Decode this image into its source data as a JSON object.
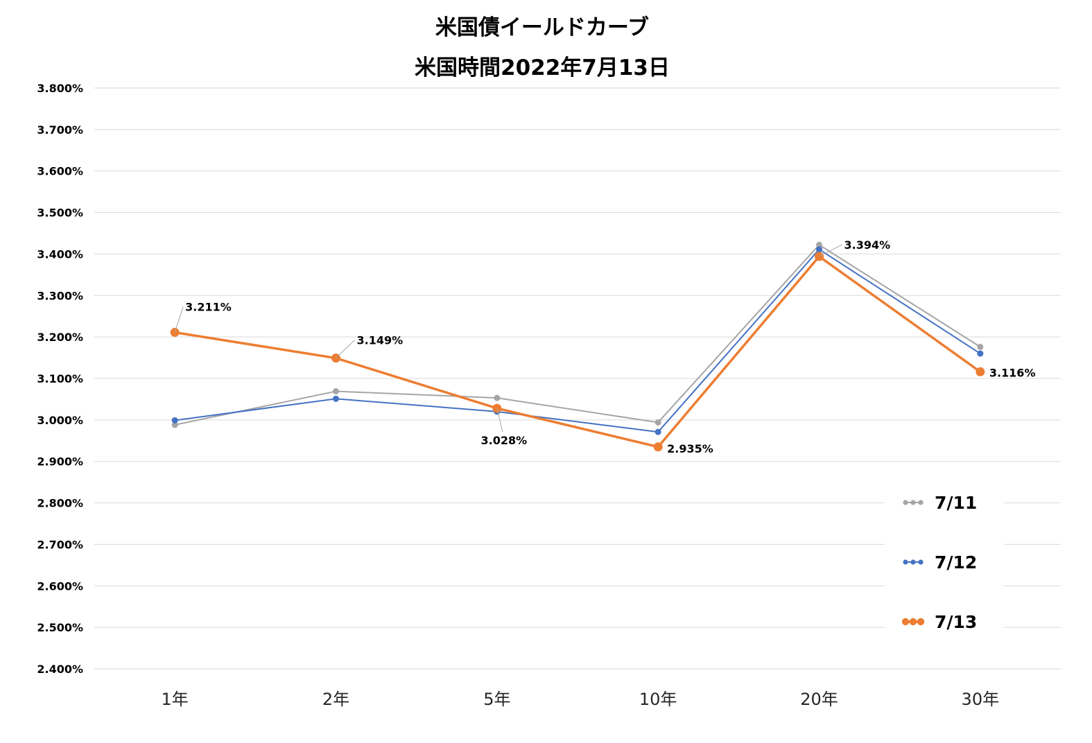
{
  "chart_data": {
    "type": "line",
    "title": "米国債イールドカーブ",
    "subtitle": "米国時間2022年7月13日",
    "xlabel": "",
    "ylabel": "",
    "categories": [
      "1年",
      "2年",
      "5年",
      "10年",
      "20年",
      "30年"
    ],
    "ylim": [
      2.4,
      3.8
    ],
    "ytick_step": 0.1,
    "ytick_labels": [
      "2.400%",
      "2.500%",
      "2.600%",
      "2.700%",
      "2.800%",
      "2.900%",
      "3.000%",
      "3.100%",
      "3.200%",
      "3.300%",
      "3.400%",
      "3.500%",
      "3.600%",
      "3.700%",
      "3.800%"
    ],
    "grid": true,
    "legend_position": "bottom-right",
    "series": [
      {
        "name": "7/11",
        "color": "#A5A5A5",
        "values": [
          2.988,
          3.069,
          3.053,
          2.994,
          3.422,
          3.176
        ]
      },
      {
        "name": "7/12",
        "color": "#4472C4",
        "values": [
          2.999,
          3.051,
          3.02,
          2.971,
          3.411,
          3.16
        ]
      },
      {
        "name": "7/13",
        "color": "#ED7D31",
        "values": [
          3.211,
          3.149,
          3.028,
          2.935,
          3.394,
          3.116
        ]
      }
    ],
    "data_labels": {
      "series": "7/13",
      "texts": [
        "3.211%",
        "3.149%",
        "3.028%",
        "2.935%",
        "3.394%",
        "3.116%"
      ]
    }
  }
}
